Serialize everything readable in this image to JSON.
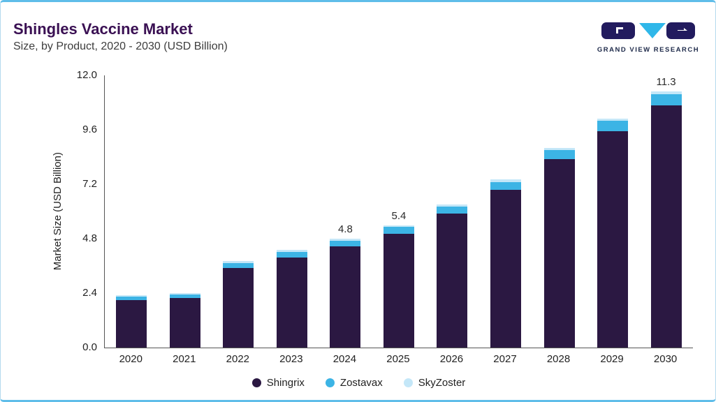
{
  "header": {
    "title": "Shingles Vaccine Market",
    "subtitle": "Size, by Product, 2020 - 2030 (USD Billion)",
    "logo_text": "GRAND VIEW RESEARCH"
  },
  "colors": {
    "title": "#3A1053",
    "accent_border": "#5FBDE9",
    "axis": "#555555"
  },
  "chart_data": {
    "type": "bar",
    "stacked": true,
    "title": "Shingles Vaccine Market",
    "subtitle": "Size, by Product, 2020 - 2030 (USD Billion)",
    "xlabel": "",
    "ylabel": "Market Size (USD Billion)",
    "ylim": [
      0,
      12.0
    ],
    "yticks": [
      12.0,
      9.6,
      7.2,
      4.8,
      2.4,
      0.0
    ],
    "grid": false,
    "legend_position": "bottom",
    "categories": [
      "2020",
      "2021",
      "2022",
      "2023",
      "2024",
      "2025",
      "2026",
      "2027",
      "2028",
      "2029",
      "2030"
    ],
    "series": [
      {
        "name": "Shingrix",
        "color": "#2B1842",
        "values": [
          2.1,
          2.18,
          3.5,
          3.98,
          4.45,
          5.02,
          5.9,
          6.95,
          8.3,
          9.55,
          10.68
        ]
      },
      {
        "name": "Zostavax",
        "color": "#3CB4E5",
        "values": [
          0.15,
          0.17,
          0.22,
          0.24,
          0.27,
          0.3,
          0.32,
          0.35,
          0.4,
          0.45,
          0.5
        ]
      },
      {
        "name": "SkyZoster",
        "color": "#C4E7F8",
        "values": [
          0.05,
          0.05,
          0.08,
          0.08,
          0.08,
          0.08,
          0.08,
          0.1,
          0.1,
          0.1,
          0.12
        ]
      }
    ],
    "totals": [
      2.3,
      2.4,
      3.8,
      4.3,
      4.8,
      5.4,
      6.3,
      7.4,
      8.8,
      10.1,
      11.3
    ],
    "annotations": [
      {
        "category": "2024",
        "text": "4.8"
      },
      {
        "category": "2025",
        "text": "5.4"
      },
      {
        "category": "2030",
        "text": "11.3"
      }
    ]
  }
}
